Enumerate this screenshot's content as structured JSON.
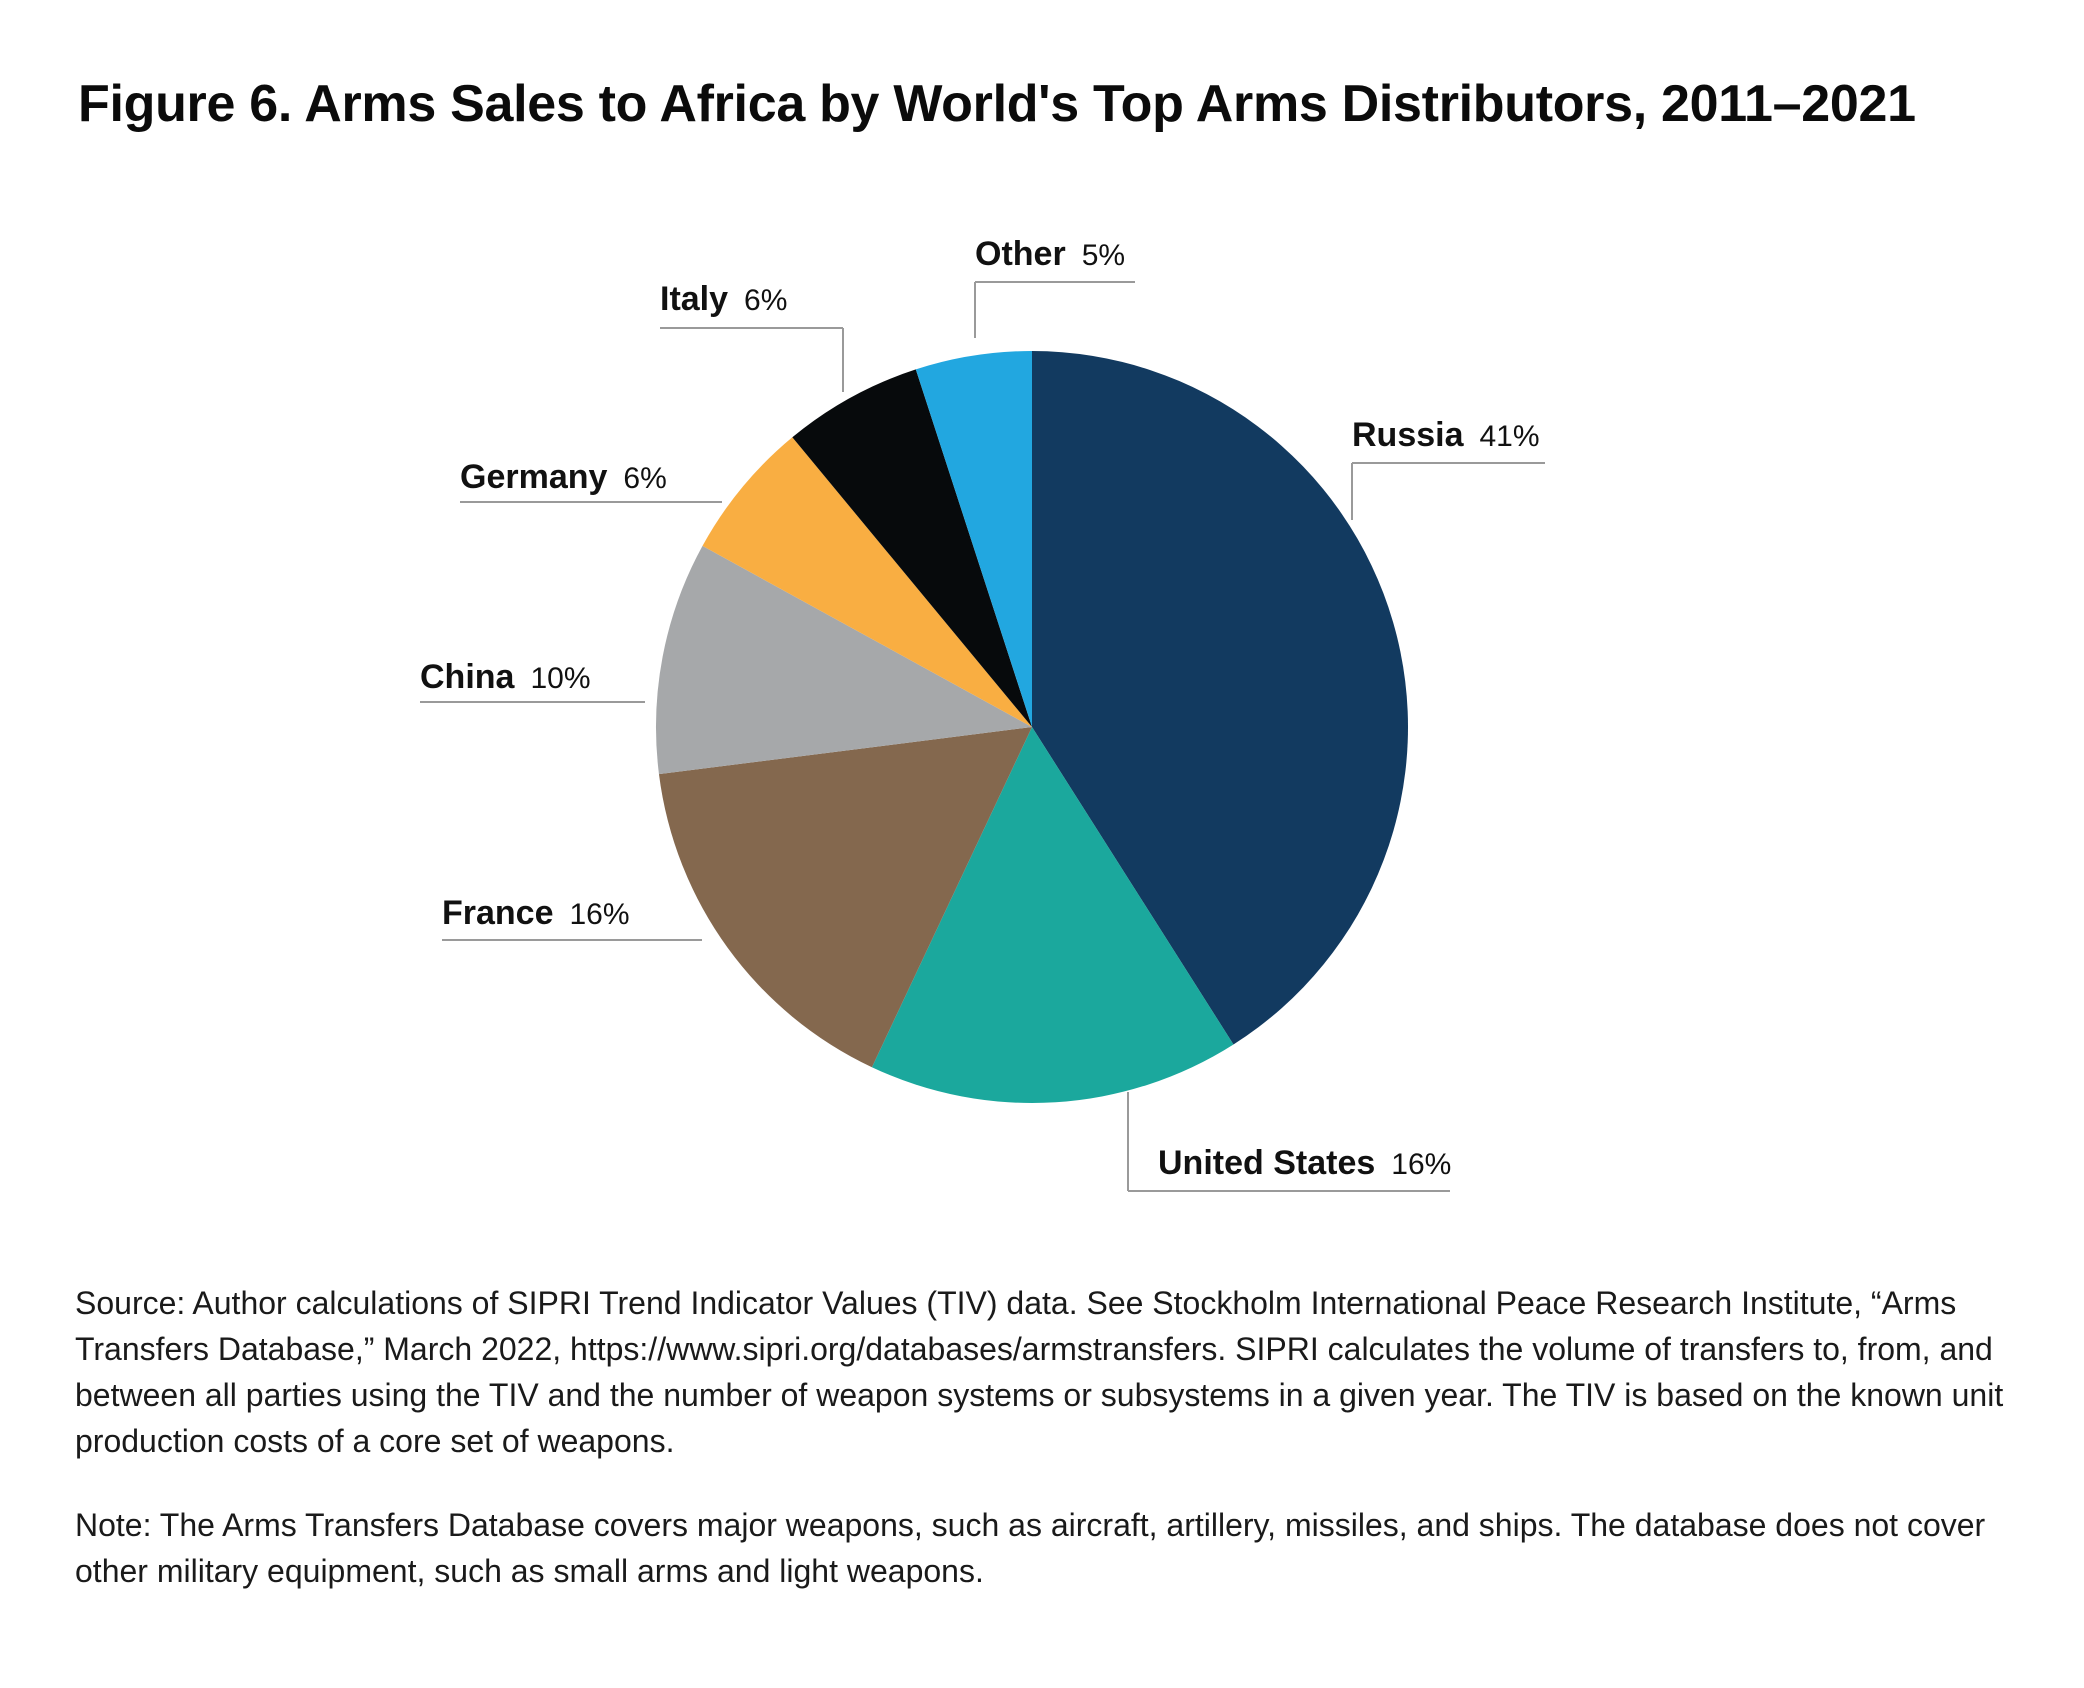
{
  "chart_data": {
    "type": "pie",
    "title": "Figure 6. Arms Sales to Africa by World's Top Arms Distributors, 2011–2021",
    "start_at": "12 o'clock, clockwise",
    "slices": [
      {
        "label": "Russia",
        "value": 41,
        "display": "41%",
        "color": "#123a60"
      },
      {
        "label": "United States",
        "value": 16,
        "display": "16%",
        "color": "#1ba89d"
      },
      {
        "label": "France",
        "value": 16,
        "display": "16%",
        "color": "#84684e"
      },
      {
        "label": "China",
        "value": 10,
        "display": "10%",
        "color": "#a6a8aa"
      },
      {
        "label": "Germany",
        "value": 6,
        "display": "6%",
        "color": "#f9ae42"
      },
      {
        "label": "Italy",
        "value": 6,
        "display": "6%",
        "color": "#070a0c"
      },
      {
        "label": "Other",
        "value": 5,
        "display": "5%",
        "color": "#22a7e0"
      }
    ]
  },
  "notes": {
    "source": "Source: Author calculations of SIPRI Trend Indicator Values (TIV) data. See Stockholm International Peace Research Institute, “Arms Transfers Database,” March 2022, https://www.sipri.org/databases/armstransfers. SIPRI calculates the volume of transfers to, from, and between all parties using the TIV and the number of weapon systems or subsystems in a given year. The TIV is based on the known unit production costs of a core set of weapons.",
    "note": "Note: The Arms Transfers Database covers major weapons, such as aircraft, artillery, missiles, and ships. The database does not cover other military equipment, such as small arms and light weapons."
  }
}
